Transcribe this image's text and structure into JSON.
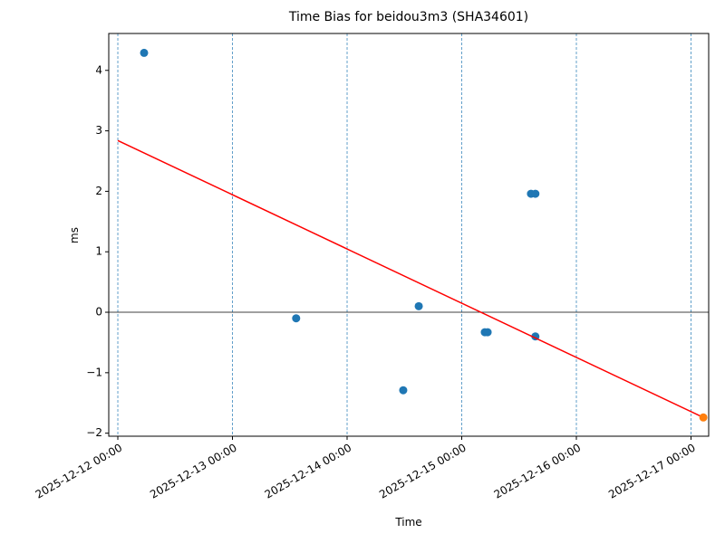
{
  "chart_data": {
    "type": "scatter",
    "title": "Time Bias for beidou3m3 (SHA34601)",
    "xlabel": "Time",
    "ylabel": "ms",
    "xlim": [
      "2025-12-11 22:06",
      "2025-12-17 03:42"
    ],
    "xticks": [
      "2025-12-12 00:00",
      "2025-12-13 00:00",
      "2025-12-14 00:00",
      "2025-12-15 00:00",
      "2025-12-16 00:00",
      "2025-12-17 00:00"
    ],
    "ylim": [
      -2.05,
      4.61
    ],
    "yticks": [
      {
        "value": -2,
        "label": "−2"
      },
      {
        "value": -1,
        "label": "−1"
      },
      0,
      1,
      2,
      3,
      4
    ],
    "xgrid": true,
    "zero_line": true,
    "series": [
      {
        "type": "scatter",
        "color": "#1f77b4",
        "x": [
          "2025-12-12 05:30",
          "2025-12-13 13:20",
          "2025-12-14 11:45",
          "2025-12-14 15:00",
          "2025-12-15 04:50",
          "2025-12-15 05:25",
          "2025-12-15 14:30",
          "2025-12-15 15:25",
          "2025-12-15 15:25"
        ],
        "values": [
          4.29,
          -0.1,
          -1.29,
          0.1,
          -0.33,
          -0.33,
          1.96,
          1.96,
          -0.4
        ]
      },
      {
        "type": "line",
        "color": "#ff0000",
        "x": [
          "2025-12-12 00:00",
          "2025-12-17 02:35"
        ],
        "values": [
          2.84,
          -1.74
        ]
      },
      {
        "type": "scatter",
        "color": "#ff7f0e",
        "x": [
          "2025-12-17 02:35"
        ],
        "values": [
          -1.74
        ]
      }
    ]
  }
}
